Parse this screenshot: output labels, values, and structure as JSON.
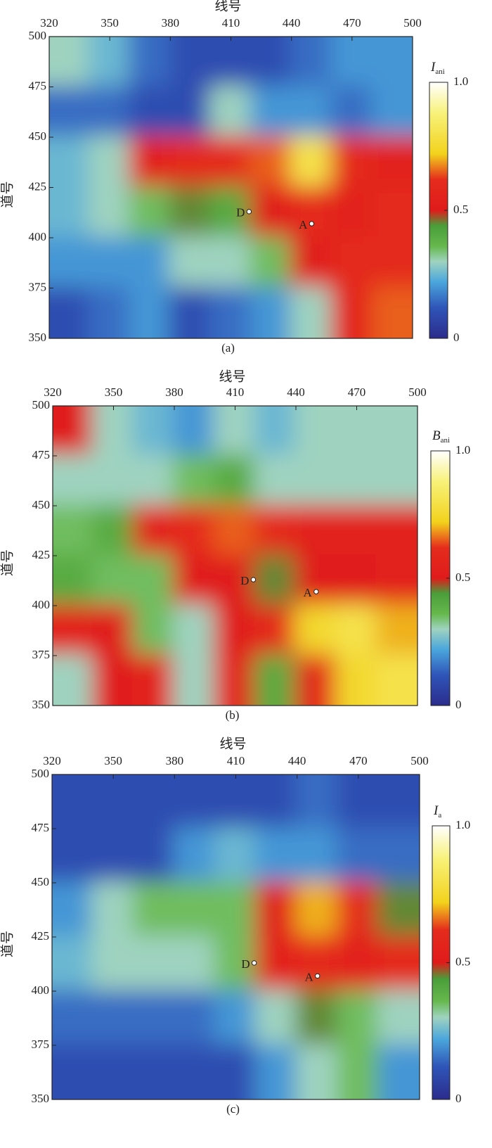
{
  "chart_data": [
    {
      "type": "heatmap",
      "caption": "(a)",
      "x_label": "线号",
      "y_label": "道号",
      "colorbar_label": "I",
      "colorbar_label_sub": "ani",
      "xlim": [
        320,
        500
      ],
      "xticks": [
        320,
        350,
        380,
        410,
        440,
        470,
        500
      ],
      "ylim": [
        350,
        500
      ],
      "yticks": [
        350,
        375,
        400,
        425,
        450,
        475,
        500
      ],
      "clim": [
        0,
        1
      ],
      "cticks": [
        0,
        0.5,
        {
          "value": 1,
          "label": "1.0"
        }
      ],
      "x": [
        330,
        350,
        370,
        390,
        410,
        430,
        450,
        470,
        490
      ],
      "y": [
        487.5,
        462.5,
        437.5,
        412.5,
        387.5,
        362.5
      ],
      "values": [
        [
          0.3,
          0.25,
          0.15,
          0.1,
          0.1,
          0.1,
          0.15,
          0.2,
          0.2
        ],
        [
          0.15,
          0.15,
          0.1,
          0.1,
          0.3,
          0.2,
          0.2,
          0.15,
          0.2
        ],
        [
          0.25,
          0.3,
          0.55,
          0.6,
          0.6,
          0.65,
          0.8,
          0.6,
          0.55
        ],
        [
          0.25,
          0.3,
          0.35,
          0.45,
          0.4,
          0.5,
          0.6,
          0.55,
          0.6
        ],
        [
          0.2,
          0.2,
          0.2,
          0.3,
          0.3,
          0.35,
          0.5,
          0.6,
          0.6
        ],
        [
          0.1,
          0.15,
          0.2,
          0.1,
          0.15,
          0.2,
          0.3,
          0.55,
          0.65
        ]
      ],
      "points": [
        {
          "label": "D",
          "x": 419,
          "y": 413
        },
        {
          "label": "A",
          "x": 450,
          "y": 407
        }
      ]
    },
    {
      "type": "heatmap",
      "caption": "(b)",
      "x_label": "线号",
      "y_label": "道号",
      "colorbar_label": "B",
      "colorbar_label_sub": "ani",
      "xlim": [
        320,
        500
      ],
      "xticks": [
        320,
        350,
        380,
        410,
        440,
        470,
        500
      ],
      "ylim": [
        350,
        500
      ],
      "yticks": [
        350,
        375,
        400,
        425,
        450,
        475,
        500
      ],
      "clim": [
        0,
        1
      ],
      "cticks": [
        0,
        0.5,
        {
          "value": 1,
          "label": "1.0"
        }
      ],
      "x": [
        330,
        350,
        370,
        390,
        410,
        430,
        450,
        470,
        490
      ],
      "y": [
        487.5,
        462.5,
        437.5,
        412.5,
        387.5,
        362.5
      ],
      "values": [
        [
          0.5,
          0.3,
          0.25,
          0.2,
          0.3,
          0.25,
          0.3,
          0.3,
          0.3
        ],
        [
          0.3,
          0.3,
          0.3,
          0.35,
          0.4,
          0.3,
          0.3,
          0.3,
          0.3
        ],
        [
          0.35,
          0.4,
          0.55,
          0.6,
          0.65,
          0.6,
          0.55,
          0.55,
          0.55
        ],
        [
          0.4,
          0.35,
          0.35,
          0.5,
          0.5,
          0.45,
          0.5,
          0.5,
          0.55
        ],
        [
          0.55,
          0.5,
          0.35,
          0.3,
          0.5,
          0.6,
          0.75,
          0.8,
          0.7
        ],
        [
          0.3,
          0.5,
          0.55,
          0.3,
          0.55,
          0.4,
          0.55,
          0.75,
          0.8
        ]
      ],
      "points": [
        {
          "label": "D",
          "x": 419,
          "y": 413
        },
        {
          "label": "A",
          "x": 450,
          "y": 407
        }
      ]
    },
    {
      "type": "heatmap",
      "caption": "(c)",
      "x_label": "线号",
      "y_label": "道号",
      "colorbar_label": "I",
      "colorbar_label_sub": "a",
      "xlim": [
        320,
        500
      ],
      "xticks": [
        320,
        350,
        380,
        410,
        440,
        470,
        500
      ],
      "ylim": [
        350,
        500
      ],
      "yticks": [
        350,
        375,
        400,
        425,
        450,
        475,
        500
      ],
      "clim": [
        0,
        1
      ],
      "cticks": [
        0,
        0.5,
        {
          "value": 1,
          "label": "1.0"
        }
      ],
      "x": [
        330,
        350,
        370,
        390,
        410,
        430,
        450,
        470,
        490
      ],
      "y": [
        487.5,
        462.5,
        437.5,
        412.5,
        387.5,
        362.5
      ],
      "values": [
        [
          0.1,
          0.1,
          0.1,
          0.1,
          0.1,
          0.1,
          0.15,
          0.1,
          0.1
        ],
        [
          0.1,
          0.1,
          0.1,
          0.2,
          0.25,
          0.2,
          0.2,
          0.15,
          0.15
        ],
        [
          0.2,
          0.3,
          0.35,
          0.35,
          0.35,
          0.5,
          0.7,
          0.6,
          0.45
        ],
        [
          0.25,
          0.3,
          0.3,
          0.3,
          0.35,
          0.55,
          0.6,
          0.55,
          0.6
        ],
        [
          0.15,
          0.15,
          0.15,
          0.15,
          0.2,
          0.3,
          0.45,
          0.35,
          0.3
        ],
        [
          0.1,
          0.1,
          0.1,
          0.1,
          0.1,
          0.2,
          0.3,
          0.35,
          0.2
        ]
      ],
      "points": [
        {
          "label": "D",
          "x": 419,
          "y": 413
        },
        {
          "label": "A",
          "x": 450,
          "y": 407
        }
      ]
    }
  ],
  "colormap": [
    {
      "value": 0,
      "color": "#2b2c8c"
    },
    {
      "value": 0.12,
      "color": "#2f55b8"
    },
    {
      "value": 0.22,
      "color": "#4aa6dc"
    },
    {
      "value": 0.3,
      "color": "#9fd3c0"
    },
    {
      "value": 0.36,
      "color": "#66b84c"
    },
    {
      "value": 0.44,
      "color": "#4a9e3a"
    },
    {
      "value": 0.5,
      "color": "#e01b1b"
    },
    {
      "value": 0.62,
      "color": "#e52c1c"
    },
    {
      "value": 0.72,
      "color": "#f2d21c"
    },
    {
      "value": 0.88,
      "color": "#f8f27a"
    },
    {
      "value": 1,
      "color": "#ffffff"
    }
  ]
}
